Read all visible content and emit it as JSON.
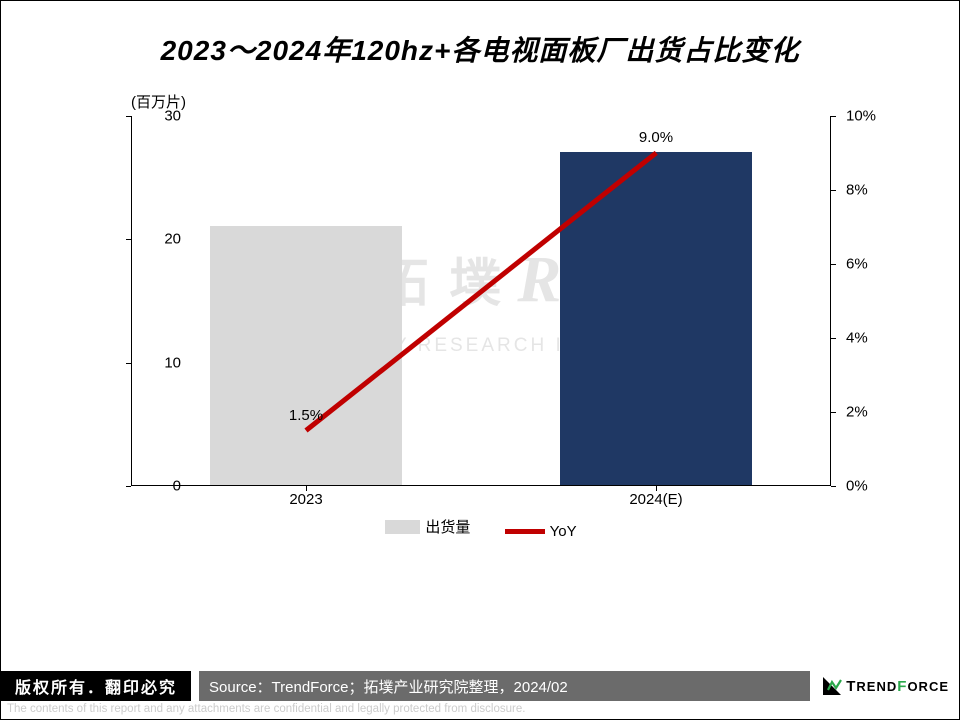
{
  "title": "2023～2024年120hz+各电视面板厂出货占比变化",
  "chart": {
    "type": "bar+line",
    "y_unit_label": "(百万片)",
    "left_axis": {
      "min": 0,
      "max": 30,
      "step": 10
    },
    "right_axis": {
      "min": 0,
      "max": 10,
      "step": 2,
      "suffix": "%"
    },
    "categories": [
      "2023",
      "2024(E)"
    ],
    "bars": {
      "series_name": "出货量",
      "values": [
        21,
        27
      ],
      "colors": [
        "#d9d9d9",
        "#1f3864"
      ],
      "bar_width_frac": 0.55
    },
    "line": {
      "series_name": "YoY",
      "values_pct": [
        1.5,
        9.0
      ],
      "labels": [
        "1.5%",
        "9.0%"
      ],
      "color": "#c00000",
      "line_width": 5
    },
    "label_fontsize": 15,
    "title_fontsize": 28,
    "background_color": "#ffffff",
    "axis_color": "#000000"
  },
  "watermark": {
    "cn": "拓  墣",
    "ri": "Ri",
    "sub": "TOPOLOGY RESEARCH INSTITUTE"
  },
  "footer": {
    "copyright": "版权所有．翻印必究",
    "source": "Source：TrendForce；拓墣产业研究院整理，2024/02",
    "logo_text": "TRENDFORCE",
    "disclaimer": "The contents of this report and any attachments are confidential and legally protected from disclosure."
  }
}
